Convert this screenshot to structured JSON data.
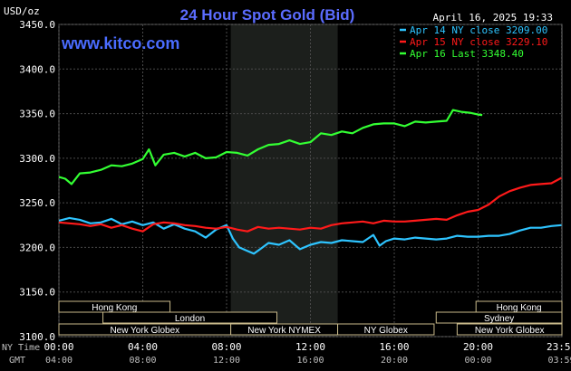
{
  "chart_data": {
    "type": "line",
    "title": "24 Hour Spot Gold (Bid)",
    "ylabel": "USD/oz",
    "watermark": "www.kitco.com",
    "timestamp": "April 16, 2025 19:33",
    "ylim": [
      3100,
      3450
    ],
    "xlim": [
      0,
      24
    ],
    "yticks": [
      "3450.0",
      "3400.0",
      "3350.0",
      "3300.0",
      "3250.0",
      "3200.0",
      "3150.0",
      "3100.0"
    ],
    "ytick_values": [
      3450,
      3400,
      3350,
      3300,
      3250,
      3200,
      3150,
      3100
    ],
    "x_axis_ny_label": "NY Time",
    "x_axis_gmt_label": "GMT",
    "x_ny_ticks": [
      "00:00",
      "04:00",
      "08:00",
      "12:00",
      "16:00",
      "20:00",
      "23:59"
    ],
    "x_gmt_ticks": [
      "04:00",
      "08:00",
      "12:00",
      "16:00",
      "20:00",
      "00:00",
      "03:59"
    ],
    "x_tick_hours": [
      0,
      4,
      8,
      12,
      16,
      20,
      23.98
    ],
    "grid": true,
    "legend_position": "top-right",
    "highlight_band": {
      "start": 8.2,
      "end": 13.3
    },
    "sessions": [
      {
        "label": "Hong Kong",
        "start": 0,
        "end": 5.3,
        "row": 0
      },
      {
        "label": "London",
        "start": 2.1,
        "end": 10.4,
        "row": 1
      },
      {
        "label": "New York Globex",
        "start": 0,
        "end": 8.2,
        "row": 2
      },
      {
        "label": "New York NYMEX",
        "start": 8.2,
        "end": 13.3,
        "row": 2
      },
      {
        "label": "NY Globex",
        "start": 13.3,
        "end": 17.9,
        "row": 2
      },
      {
        "label": "Hong Kong",
        "start": 19.9,
        "end": 24,
        "row": 0
      },
      {
        "label": "Sydney",
        "start": 18.0,
        "end": 24,
        "row": 1
      },
      {
        "label": "New York Globex",
        "start": 19.0,
        "end": 24,
        "row": 2
      }
    ],
    "series": [
      {
        "name": "Apr 14 NY close 3209.00",
        "color": "#2ec4ff",
        "x": [
          0,
          0.5,
          1,
          1.5,
          2,
          2.5,
          3,
          3.5,
          4,
          4.5,
          5,
          5.5,
          6,
          6.5,
          7,
          7.5,
          8,
          8.3,
          8.6,
          9,
          9.3,
          9.6,
          10,
          10.5,
          11,
          11.5,
          12,
          12.5,
          13,
          13.5,
          14,
          14.5,
          15,
          15.3,
          15.6,
          16,
          16.5,
          17,
          17.5,
          18,
          18.5,
          19,
          19.5,
          20,
          20.5,
          21,
          21.5,
          22,
          22.5,
          23,
          23.5,
          23.98
        ],
        "values": [
          3230,
          3233,
          3231,
          3227,
          3228,
          3232,
          3226,
          3229,
          3225,
          3228,
          3221,
          3226,
          3221,
          3218,
          3211,
          3220,
          3225,
          3210,
          3200,
          3196,
          3193,
          3198,
          3205,
          3203,
          3208,
          3198,
          3203,
          3206,
          3205,
          3208,
          3207,
          3206,
          3214,
          3202,
          3207,
          3210,
          3209,
          3211,
          3210,
          3209,
          3210,
          3213,
          3212,
          3212,
          3213,
          3213,
          3215,
          3219,
          3222,
          3222,
          3224,
          3225
        ]
      },
      {
        "name": "Apr 15 NY close 3229.10",
        "color": "#ff1a1a",
        "x": [
          0,
          0.5,
          1,
          1.5,
          2,
          2.5,
          3,
          3.5,
          4,
          4.5,
          5,
          5.5,
          6,
          6.5,
          7,
          7.5,
          8,
          8.5,
          9,
          9.5,
          10,
          10.5,
          11,
          11.5,
          12,
          12.5,
          13,
          13.5,
          14,
          14.5,
          15,
          15.5,
          16,
          16.5,
          17,
          17.5,
          18,
          18.5,
          19,
          19.5,
          20,
          20.5,
          21,
          21.5,
          22,
          22.5,
          23,
          23.5,
          23.98
        ],
        "values": [
          3228,
          3227,
          3226,
          3224,
          3226,
          3222,
          3225,
          3221,
          3218,
          3226,
          3228,
          3227,
          3225,
          3224,
          3222,
          3221,
          3223,
          3220,
          3218,
          3223,
          3221,
          3222,
          3221,
          3220,
          3222,
          3221,
          3225,
          3227,
          3228,
          3229,
          3227,
          3230,
          3229,
          3229,
          3230,
          3231,
          3232,
          3231,
          3236,
          3240,
          3242,
          3248,
          3257,
          3263,
          3267,
          3270,
          3271,
          3272,
          3278
        ]
      },
      {
        "name": "Apr 16 Last 3348.40",
        "color": "#33ff33",
        "x": [
          0,
          0.3,
          0.6,
          1,
          1.5,
          2,
          2.5,
          3,
          3.5,
          4,
          4.3,
          4.6,
          5,
          5.5,
          6,
          6.5,
          7,
          7.5,
          8,
          8.5,
          9,
          9.5,
          10,
          10.5,
          11,
          11.5,
          12,
          12.5,
          13,
          13.5,
          14,
          14.5,
          15,
          15.5,
          16,
          16.5,
          17,
          17.5,
          18,
          18.5,
          18.8,
          19.2,
          19.6,
          20,
          20.2
        ],
        "values": [
          3279,
          3277,
          3271,
          3283,
          3284,
          3287,
          3292,
          3291,
          3294,
          3299,
          3310,
          3292,
          3304,
          3306,
          3302,
          3306,
          3300,
          3301,
          3307,
          3306,
          3303,
          3310,
          3315,
          3316,
          3320,
          3316,
          3318,
          3328,
          3326,
          3330,
          3328,
          3334,
          3338,
          3339,
          3339,
          3336,
          3341,
          3340,
          3341,
          3342,
          3354,
          3352,
          3351,
          3349,
          3348.4
        ]
      }
    ]
  }
}
